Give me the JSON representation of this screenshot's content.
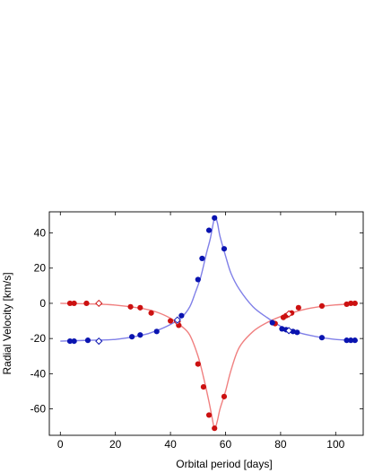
{
  "chart_data": {
    "type": "scatter",
    "title": "",
    "xlabel": "Orbital period [days]",
    "ylabel": "Radial Velocity [km/s]",
    "xlim": [
      -4,
      110
    ],
    "ylim": [
      -75,
      52
    ],
    "xticks": [
      0,
      20,
      40,
      60,
      80,
      100
    ],
    "yticks": [
      -60,
      -40,
      -20,
      0,
      20,
      40
    ],
    "grid": false,
    "legend": "none",
    "series": [
      {
        "color": "#cc1111",
        "curve_color": "#f08080",
        "curve": {
          "x": [
            0,
            10,
            20,
            30,
            35,
            40,
            44,
            47,
            50,
            52,
            54,
            55,
            56,
            57,
            58,
            60,
            62,
            65,
            70,
            75,
            80,
            85,
            90,
            95,
            100,
            108
          ],
          "y": [
            0,
            -0.3,
            -1,
            -3,
            -5,
            -8.5,
            -13,
            -18,
            -30,
            -42,
            -56,
            -64,
            -71,
            -67,
            -60,
            -50,
            -38,
            -25,
            -16,
            -11,
            -7.5,
            -5,
            -3,
            -1.7,
            -0.9,
            -0.2
          ]
        },
        "points": {
          "x": [
            3.5,
            5,
            9.5,
            25.5,
            29,
            33,
            40,
            43,
            50,
            52,
            54,
            56,
            59.5,
            78,
            81,
            82,
            84,
            86.5,
            95,
            104,
            105.5,
            107
          ],
          "y": [
            0,
            0,
            0,
            -2,
            -2.5,
            -5.5,
            -10,
            -12.5,
            -34.5,
            -47.5,
            -63.5,
            -71,
            -53,
            -11.5,
            -8,
            -7,
            -5.5,
            -2.5,
            -1.5,
            -0.5,
            0,
            0
          ]
        },
        "open_points": {
          "x": [
            14,
            42.5,
            83
          ],
          "y": [
            0,
            -10.5,
            -6
          ]
        }
      },
      {
        "color": "#0a14b0",
        "curve_color": "#8080e8",
        "curve": {
          "x": [
            0,
            10,
            20,
            30,
            35,
            40,
            44,
            47,
            49,
            51,
            53,
            54.5,
            56,
            57,
            58,
            60,
            62,
            65,
            70,
            75,
            80,
            85,
            90,
            95,
            100,
            108
          ],
          "y": [
            -21.5,
            -21,
            -20.5,
            -18,
            -15.5,
            -12,
            -8,
            -2,
            6,
            15,
            28,
            37,
            48.5,
            46,
            38,
            27,
            17,
            8,
            -2,
            -8,
            -13,
            -16,
            -18,
            -19.5,
            -20.5,
            -21.3
          ]
        },
        "points": {
          "x": [
            3.5,
            5,
            10,
            26,
            29,
            35,
            44,
            50,
            51.5,
            54,
            56,
            59.5,
            77,
            80.5,
            82,
            84.5,
            86,
            95,
            104,
            105.5,
            107
          ],
          "y": [
            -21.5,
            -21.5,
            -21,
            -19,
            -18,
            -16,
            -7,
            13.5,
            25.5,
            41.5,
            48.5,
            31,
            -11,
            -14.5,
            -15,
            -16,
            -16.5,
            -19.5,
            -21,
            -21,
            -21
          ]
        },
        "open_points": {
          "x": [
            14,
            42.5,
            83
          ],
          "y": [
            -21.5,
            -9.5,
            -15.5
          ]
        }
      }
    ]
  }
}
